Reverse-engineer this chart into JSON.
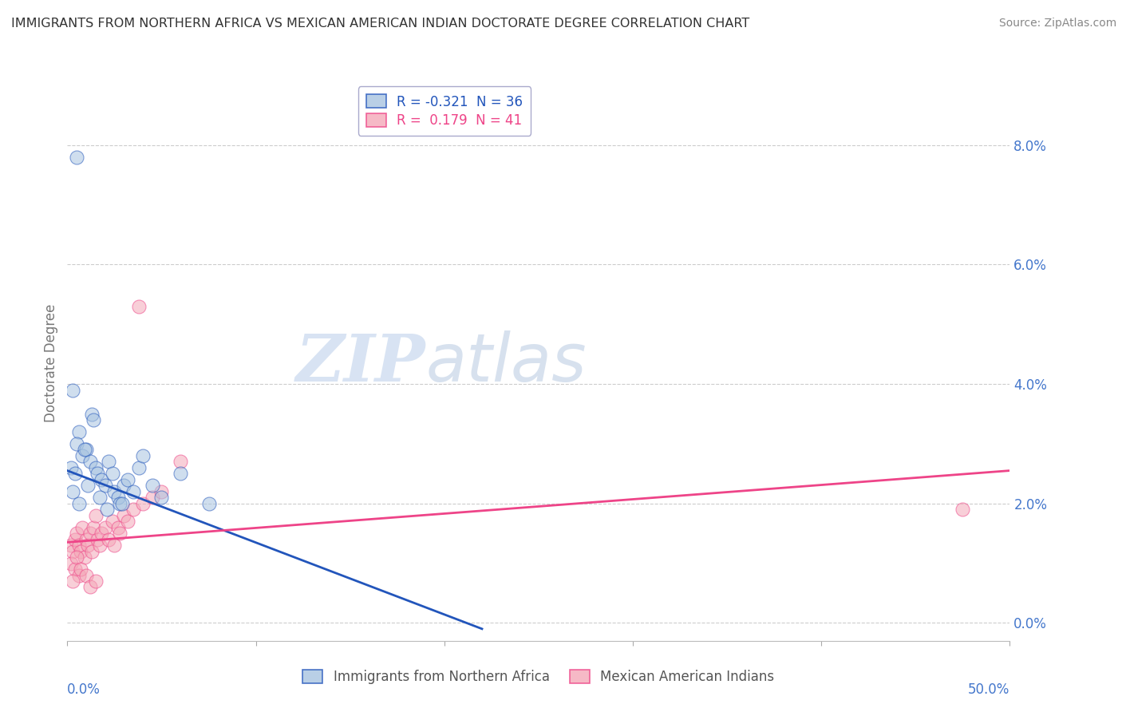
{
  "title": "IMMIGRANTS FROM NORTHERN AFRICA VS MEXICAN AMERICAN INDIAN DOCTORATE DEGREE CORRELATION CHART",
  "source": "Source: ZipAtlas.com",
  "ylabel": "Doctorate Degree",
  "ytick_vals": [
    0.0,
    2.0,
    4.0,
    6.0,
    8.0
  ],
  "xlim": [
    0,
    50
  ],
  "ylim": [
    -0.3,
    9.0
  ],
  "legend_blue_r": "-0.321",
  "legend_blue_n": "36",
  "legend_pink_r": "0.179",
  "legend_pink_n": "41",
  "legend_label_blue": "Immigrants from Northern Africa",
  "legend_label_pink": "Mexican American Indians",
  "watermark_zip": "ZIP",
  "watermark_atlas": "atlas",
  "blue_scatter": [
    [
      0.5,
      7.8
    ],
    [
      0.3,
      3.9
    ],
    [
      0.2,
      2.6
    ],
    [
      0.4,
      2.5
    ],
    [
      0.6,
      3.2
    ],
    [
      0.5,
      3.0
    ],
    [
      0.8,
      2.8
    ],
    [
      1.0,
      2.9
    ],
    [
      1.2,
      2.7
    ],
    [
      1.5,
      2.6
    ],
    [
      1.3,
      3.5
    ],
    [
      1.4,
      3.4
    ],
    [
      1.6,
      2.5
    ],
    [
      1.8,
      2.4
    ],
    [
      2.0,
      2.3
    ],
    [
      2.2,
      2.7
    ],
    [
      2.4,
      2.5
    ],
    [
      2.5,
      2.2
    ],
    [
      2.7,
      2.1
    ],
    [
      2.8,
      2.0
    ],
    [
      3.0,
      2.3
    ],
    [
      3.2,
      2.4
    ],
    [
      3.5,
      2.2
    ],
    [
      3.8,
      2.6
    ],
    [
      4.0,
      2.8
    ],
    [
      4.5,
      2.3
    ],
    [
      5.0,
      2.1
    ],
    [
      6.0,
      2.5
    ],
    [
      0.9,
      2.9
    ],
    [
      1.1,
      2.3
    ],
    [
      1.7,
      2.1
    ],
    [
      2.1,
      1.9
    ],
    [
      2.9,
      2.0
    ],
    [
      0.3,
      2.2
    ],
    [
      0.6,
      2.0
    ],
    [
      7.5,
      2.0
    ]
  ],
  "pink_scatter": [
    [
      0.2,
      1.3
    ],
    [
      0.3,
      1.2
    ],
    [
      0.4,
      1.4
    ],
    [
      0.5,
      1.5
    ],
    [
      0.6,
      1.3
    ],
    [
      0.7,
      1.2
    ],
    [
      0.8,
      1.6
    ],
    [
      0.9,
      1.1
    ],
    [
      1.0,
      1.4
    ],
    [
      1.1,
      1.3
    ],
    [
      1.2,
      1.5
    ],
    [
      1.3,
      1.2
    ],
    [
      1.4,
      1.6
    ],
    [
      1.5,
      1.8
    ],
    [
      1.6,
      1.4
    ],
    [
      1.7,
      1.3
    ],
    [
      1.8,
      1.5
    ],
    [
      2.0,
      1.6
    ],
    [
      2.2,
      1.4
    ],
    [
      2.4,
      1.7
    ],
    [
      2.5,
      1.3
    ],
    [
      2.7,
      1.6
    ],
    [
      2.8,
      1.5
    ],
    [
      3.0,
      1.8
    ],
    [
      3.2,
      1.7
    ],
    [
      3.5,
      1.9
    ],
    [
      4.0,
      2.0
    ],
    [
      4.5,
      2.1
    ],
    [
      5.0,
      2.2
    ],
    [
      6.0,
      2.7
    ],
    [
      0.2,
      1.0
    ],
    [
      0.4,
      0.9
    ],
    [
      0.5,
      1.1
    ],
    [
      0.6,
      0.8
    ],
    [
      0.7,
      0.9
    ],
    [
      0.3,
      0.7
    ],
    [
      1.0,
      0.8
    ],
    [
      1.2,
      0.6
    ],
    [
      1.5,
      0.7
    ],
    [
      47.5,
      1.9
    ],
    [
      3.8,
      5.3
    ]
  ],
  "blue_color": "#a8c4e0",
  "pink_color": "#f4a8b8",
  "blue_line_color": "#2255bb",
  "pink_line_color": "#ee4488",
  "background_color": "#ffffff",
  "grid_color": "#cccccc",
  "title_color": "#333333",
  "axis_label_color": "#4477cc",
  "scatter_alpha": 0.55,
  "scatter_size": 150,
  "blue_line_start_x": 0,
  "blue_line_end_x": 22,
  "blue_line_start_y": 2.55,
  "blue_line_end_y": -0.1,
  "pink_line_start_x": 0,
  "pink_line_end_x": 50,
  "pink_line_start_y": 1.35,
  "pink_line_end_y": 2.55
}
